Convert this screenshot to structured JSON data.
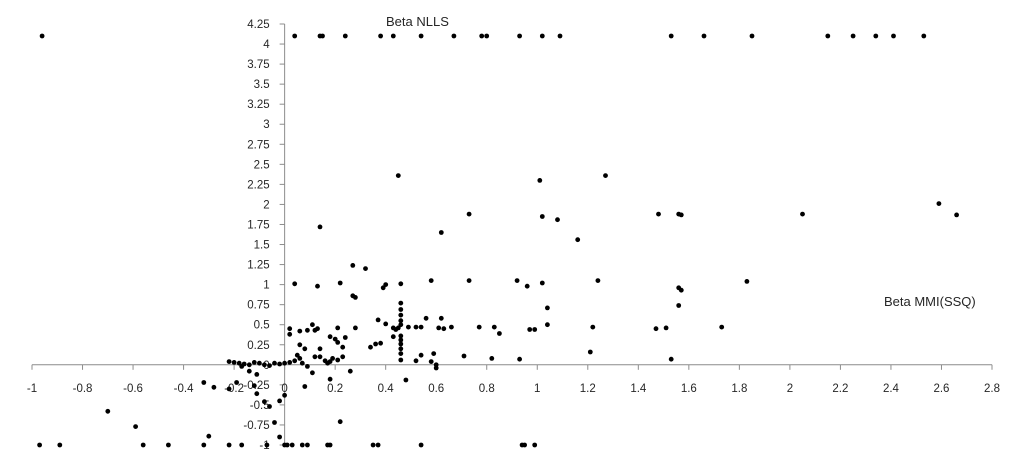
{
  "chart_data": {
    "type": "scatter",
    "title": "",
    "xlabel": "Beta MMI(SSQ)",
    "ylabel": "Beta NLLS",
    "xlim": [
      -1,
      2.8
    ],
    "ylim": [
      -1,
      4.25
    ],
    "grid": false,
    "legend": "none",
    "x_ticks": [
      "-1",
      "-0.8",
      "-0.6",
      "-0.4",
      "-0.2",
      "0",
      "0.2",
      "0.4",
      "0.6",
      "0.8",
      "1",
      "1.2",
      "1.4",
      "1.6",
      "1.8",
      "2",
      "2.2",
      "2.4",
      "2.6",
      "2.8"
    ],
    "y_ticks": [
      "-1",
      "-0.75",
      "-0.5",
      "-0.25",
      "0",
      "0.25",
      "0.5",
      "0.75",
      "1",
      "1.25",
      "1.5",
      "1.75",
      "2",
      "2.25",
      "2.5",
      "2.75",
      "3",
      "3.25",
      "3.5",
      "3.75",
      "4",
      "4.25"
    ],
    "marker_color": "#000000",
    "axis_color": "#8c8c8c",
    "series": [
      {
        "points": [
          [
            -0.96,
            4.1
          ],
          [
            0.04,
            4.1
          ],
          [
            0.14,
            4.1
          ],
          [
            0.15,
            4.1
          ],
          [
            0.24,
            4.1
          ],
          [
            0.38,
            4.1
          ],
          [
            0.43,
            4.1
          ],
          [
            0.54,
            4.1
          ],
          [
            0.67,
            4.1
          ],
          [
            0.78,
            4.1
          ],
          [
            0.8,
            4.1
          ],
          [
            0.93,
            4.1
          ],
          [
            1.02,
            4.1
          ],
          [
            1.09,
            4.1
          ],
          [
            1.53,
            4.1
          ],
          [
            1.66,
            4.1
          ],
          [
            1.85,
            4.1
          ],
          [
            2.15,
            4.1
          ],
          [
            2.25,
            4.1
          ],
          [
            2.34,
            4.1
          ],
          [
            2.41,
            4.1
          ],
          [
            2.53,
            4.1
          ],
          [
            0.45,
            2.36
          ],
          [
            1.01,
            2.3
          ],
          [
            1.27,
            2.36
          ],
          [
            2.59,
            2.01
          ],
          [
            2.66,
            1.87
          ],
          [
            0.73,
            1.88
          ],
          [
            1.02,
            1.85
          ],
          [
            1.08,
            1.81
          ],
          [
            1.48,
            1.88
          ],
          [
            1.56,
            1.88
          ],
          [
            1.57,
            1.87
          ],
          [
            2.05,
            1.88
          ],
          [
            0.14,
            1.72
          ],
          [
            0.62,
            1.65
          ],
          [
            1.16,
            1.56
          ],
          [
            0.27,
            1.24
          ],
          [
            0.32,
            1.2
          ],
          [
            0.04,
            1.01
          ],
          [
            0.13,
            0.98
          ],
          [
            0.22,
            1.02
          ],
          [
            0.39,
            0.96
          ],
          [
            0.4,
            1.0
          ],
          [
            0.46,
            1.01
          ],
          [
            0.58,
            1.05
          ],
          [
            0.73,
            1.05
          ],
          [
            0.92,
            1.05
          ],
          [
            0.96,
            0.98
          ],
          [
            1.02,
            1.02
          ],
          [
            1.24,
            1.05
          ],
          [
            1.57,
            0.93
          ],
          [
            1.83,
            1.04
          ],
          [
            0.27,
            0.86
          ],
          [
            0.28,
            0.84
          ],
          [
            1.56,
            0.74
          ],
          [
            1.04,
            0.71
          ],
          [
            0.11,
            0.5
          ],
          [
            0.13,
            0.45
          ],
          [
            0.12,
            0.43
          ],
          [
            0.09,
            0.43
          ],
          [
            0.02,
            0.45
          ],
          [
            0.06,
            0.42
          ],
          [
            0.21,
            0.46
          ],
          [
            0.28,
            0.46
          ],
          [
            0.37,
            0.56
          ],
          [
            0.4,
            0.51
          ],
          [
            0.43,
            0.46
          ],
          [
            0.44,
            0.44
          ],
          [
            0.45,
            0.46
          ],
          [
            0.46,
            0.77
          ],
          [
            0.46,
            0.69
          ],
          [
            0.46,
            0.62
          ],
          [
            0.46,
            0.55
          ],
          [
            0.46,
            0.5
          ],
          [
            0.49,
            0.47
          ],
          [
            0.52,
            0.47
          ],
          [
            0.54,
            0.47
          ],
          [
            0.56,
            0.58
          ],
          [
            0.61,
            0.46
          ],
          [
            0.62,
            0.58
          ],
          [
            0.63,
            0.45
          ],
          [
            0.66,
            0.47
          ],
          [
            0.77,
            0.47
          ],
          [
            0.83,
            0.47
          ],
          [
            0.85,
            0.39
          ],
          [
            0.97,
            0.44
          ],
          [
            0.99,
            0.44
          ],
          [
            1.04,
            0.5
          ],
          [
            1.22,
            0.47
          ],
          [
            1.47,
            0.45
          ],
          [
            1.51,
            0.46
          ],
          [
            1.73,
            0.47
          ],
          [
            1.56,
            0.96
          ],
          [
            0.02,
            0.38
          ],
          [
            0.06,
            0.25
          ],
          [
            0.08,
            0.2
          ],
          [
            0.14,
            0.2
          ],
          [
            0.18,
            0.35
          ],
          [
            0.2,
            0.32
          ],
          [
            0.21,
            0.28
          ],
          [
            0.23,
            0.22
          ],
          [
            0.24,
            0.34
          ],
          [
            0.36,
            0.26
          ],
          [
            0.34,
            0.22
          ],
          [
            0.38,
            0.27
          ],
          [
            0.43,
            0.35
          ],
          [
            0.46,
            0.36
          ],
          [
            0.46,
            0.31
          ],
          [
            0.46,
            0.26
          ],
          [
            0.46,
            0.2
          ],
          [
            0.46,
            0.14
          ],
          [
            0.54,
            0.12
          ],
          [
            0.59,
            0.14
          ],
          [
            0.71,
            0.11
          ],
          [
            0.82,
            0.08
          ],
          [
            0.93,
            0.07
          ],
          [
            1.21,
            0.16
          ],
          [
            1.53,
            0.07
          ],
          [
            -0.22,
            0.04
          ],
          [
            -0.2,
            0.03
          ],
          [
            -0.18,
            0.02
          ],
          [
            -0.16,
            0.01
          ],
          [
            -0.14,
            0.0
          ],
          [
            -0.12,
            0.03
          ],
          [
            -0.1,
            0.02
          ],
          [
            -0.08,
            0.0
          ],
          [
            -0.06,
            -0.01
          ],
          [
            -0.04,
            0.02
          ],
          [
            -0.02,
            0.01
          ],
          [
            0.0,
            0.02
          ],
          [
            0.02,
            0.03
          ],
          [
            0.04,
            0.05
          ],
          [
            0.05,
            0.12
          ],
          [
            0.06,
            0.08
          ],
          [
            0.07,
            0.02
          ],
          [
            0.09,
            -0.02
          ],
          [
            0.12,
            0.1
          ],
          [
            0.14,
            0.1
          ],
          [
            0.16,
            0.05
          ],
          [
            0.17,
            0.02
          ],
          [
            0.18,
            0.04
          ],
          [
            0.19,
            0.08
          ],
          [
            0.21,
            0.06
          ],
          [
            0.23,
            0.1
          ],
          [
            0.46,
            0.06
          ],
          [
            0.52,
            0.05
          ],
          [
            0.58,
            0.04
          ],
          [
            0.6,
            0.0
          ],
          [
            0.6,
            -0.04
          ],
          [
            -0.17,
            -0.02
          ],
          [
            -0.14,
            -0.08
          ],
          [
            -0.11,
            -0.12
          ],
          [
            -0.19,
            -0.22
          ],
          [
            -0.28,
            -0.28
          ],
          [
            -0.32,
            -0.22
          ],
          [
            -0.22,
            -0.3
          ],
          [
            -0.12,
            -0.26
          ],
          [
            -0.11,
            -0.36
          ],
          [
            -0.08,
            -0.46
          ],
          [
            -0.06,
            -0.52
          ],
          [
            -0.02,
            -0.45
          ],
          [
            0.0,
            -0.38
          ],
          [
            -0.04,
            -0.72
          ],
          [
            -0.02,
            -0.9
          ],
          [
            0.08,
            -0.27
          ],
          [
            0.11,
            -0.1
          ],
          [
            0.18,
            -0.18
          ],
          [
            0.22,
            -0.71
          ],
          [
            0.26,
            -0.08
          ],
          [
            0.48,
            -0.19
          ],
          [
            -0.59,
            -0.77
          ],
          [
            -0.7,
            -0.58
          ],
          [
            -0.3,
            -0.89
          ],
          [
            -0.97,
            -1.0
          ],
          [
            -0.89,
            -1.0
          ],
          [
            -0.56,
            -1.0
          ],
          [
            -0.46,
            -1.0
          ],
          [
            -0.32,
            -1.0
          ],
          [
            -0.22,
            -1.0
          ],
          [
            -0.17,
            -1.0
          ],
          [
            -0.07,
            -1.0
          ],
          [
            0.0,
            -1.0
          ],
          [
            0.01,
            -1.0
          ],
          [
            0.03,
            -1.0
          ],
          [
            0.07,
            -1.0
          ],
          [
            0.09,
            -1.0
          ],
          [
            0.17,
            -1.0
          ],
          [
            0.18,
            -1.0
          ],
          [
            0.35,
            -1.0
          ],
          [
            0.37,
            -1.0
          ],
          [
            0.54,
            -1.0
          ],
          [
            0.94,
            -1.0
          ],
          [
            0.95,
            -1.0
          ],
          [
            0.99,
            -1.0
          ]
        ]
      }
    ]
  }
}
